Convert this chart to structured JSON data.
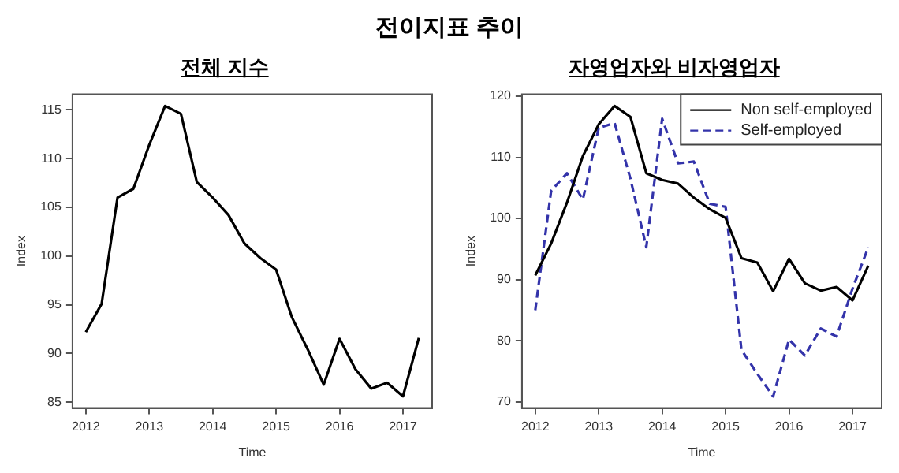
{
  "chart_data": [
    {
      "type": "line",
      "title": "전이지표 추이",
      "subtitle": "전체 지수",
      "xlabel": "Time",
      "ylabel": "Index",
      "x": [
        2012,
        2012.25,
        2012.5,
        2012.75,
        2013,
        2013.25,
        2013.5,
        2013.75,
        2014,
        2014.25,
        2014.5,
        2014.75,
        2015,
        2015.25,
        2015.5,
        2015.75,
        2016,
        2016.25,
        2016.5,
        2016.75,
        2017,
        2017.25
      ],
      "series": [
        {
          "color": "#000000",
          "line_style": "solid",
          "values": [
            92.2,
            95.1,
            106,
            106.9,
            111.4,
            115.4,
            114.6,
            107.6,
            106,
            104.2,
            101.3,
            99.8,
            98.6,
            93.7,
            90.4,
            86.8,
            91.5,
            88.4,
            86.4,
            87,
            85.6,
            91.6
          ]
        }
      ],
      "xlim": [
        2011.79,
        2017.46
      ],
      "xticks": [
        2012,
        2013,
        2014,
        2015,
        2016,
        2017
      ],
      "ylim": [
        84.4,
        116.6
      ],
      "yticks": [
        85,
        90,
        95,
        100,
        105,
        110,
        115
      ],
      "grid": false,
      "legend": false,
      "marker": "none"
    },
    {
      "type": "line",
      "subtitle": "자영업자와 비자영업자",
      "xlabel": "Time",
      "ylabel": "Index",
      "x": [
        2012,
        2012.25,
        2012.5,
        2012.75,
        2013,
        2013.25,
        2013.5,
        2013.75,
        2014,
        2014.25,
        2014.5,
        2014.75,
        2015,
        2015.25,
        2015.5,
        2015.75,
        2016,
        2016.25,
        2016.5,
        2016.75,
        2017,
        2017.25
      ],
      "series": [
        {
          "name": "Non self-employed",
          "color": "#000000",
          "line_style": "solid",
          "values": [
            90.7,
            95.9,
            102.6,
            110.2,
            115.4,
            118.4,
            116.6,
            107.4,
            106.3,
            105.7,
            103.4,
            101.5,
            100.1,
            93.5,
            92.8,
            88.1,
            93.4,
            89.4,
            88.2,
            88.8,
            86.6,
            92.3
          ]
        },
        {
          "name": "Self-employed",
          "color": "#3333aa",
          "line_style": "dashed",
          "values": [
            85,
            104.5,
            107.4,
            103.1,
            114.8,
            115.6,
            106.5,
            95.3,
            116.3,
            109,
            109.3,
            102.4,
            101.9,
            78.5,
            74.6,
            70.9,
            80.2,
            77.6,
            82,
            80.7,
            88.5,
            95.3
          ]
        }
      ],
      "xlim": [
        2011.79,
        2017.46
      ],
      "xticks": [
        2012,
        2013,
        2014,
        2015,
        2016,
        2017
      ],
      "ylim": [
        69,
        120.3
      ],
      "yticks": [
        70,
        80,
        90,
        100,
        110,
        120
      ],
      "grid": false,
      "legend": "top right",
      "marker": "none"
    }
  ]
}
